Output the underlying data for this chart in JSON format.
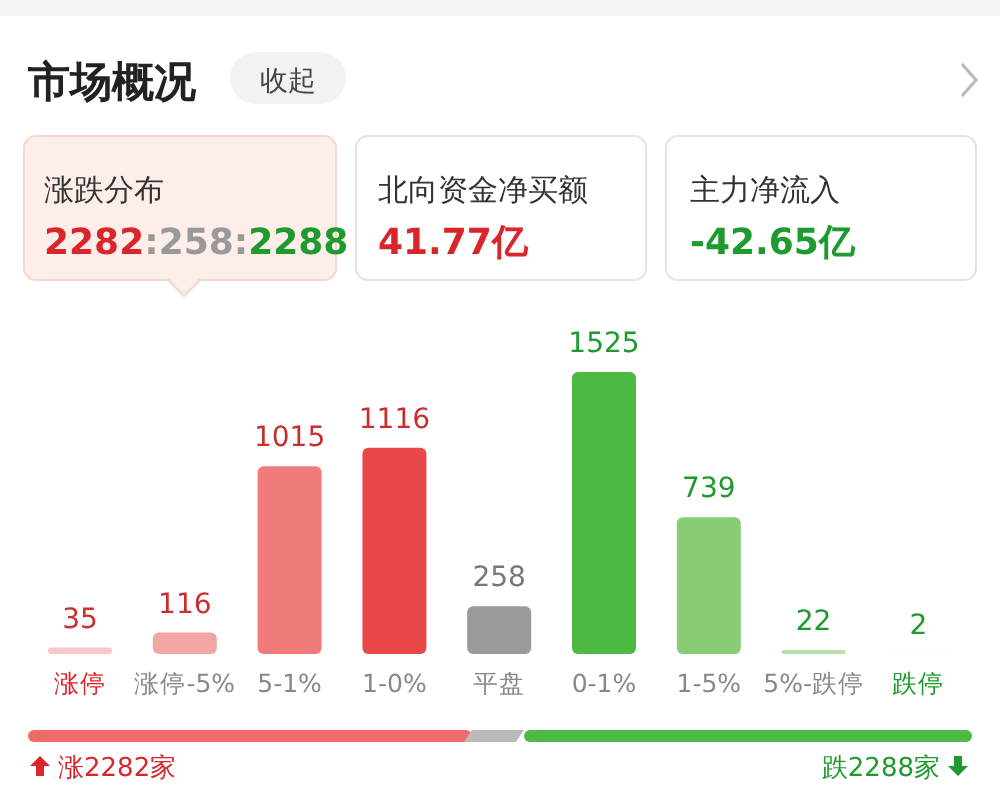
{
  "chart_data": {
    "type": "bar",
    "title": "市场概况",
    "categories": [
      "涨停",
      "涨停-5%",
      "5-1%",
      "1-0%",
      "平盘",
      "0-1%",
      "1-5%",
      "5%-跌停",
      "跌停"
    ],
    "values": [
      35,
      116,
      1015,
      1116,
      258,
      1525,
      739,
      22,
      2
    ],
    "colors": [
      "#f8c8c8",
      "#f2a5a5",
      "#ef7b7b",
      "#e84848",
      "#9a9a9a",
      "#4cb944",
      "#86cd76",
      "#b6e0aa",
      "#d8efd2"
    ],
    "data_labels": true,
    "annotations": [
      "收起",
      "涨跌分布",
      "2282:258:2288",
      "北向资金净买额",
      "41.77亿",
      "主力净流入",
      "-42.65亿",
      "涨2282家",
      "跌2288家"
    ]
  }
}
